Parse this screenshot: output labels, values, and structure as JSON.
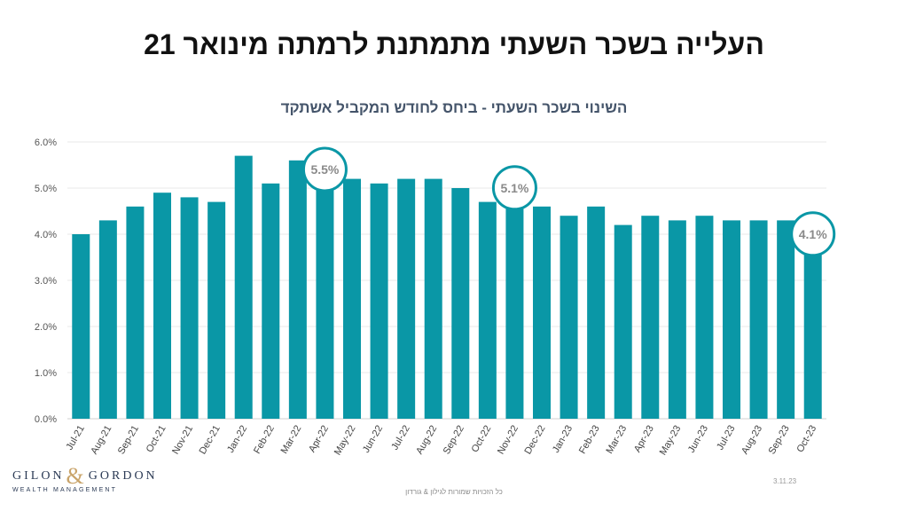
{
  "title": "העלייה בשכר השעתי מתמתנת לרמתה מינואר 21",
  "chart_data": {
    "type": "bar",
    "title": "השינוי בשכר השעתי - ביחס לחודש המקביל אשתקד",
    "categories": [
      "Jul-21",
      "Aug-21",
      "Sep-21",
      "Oct-21",
      "Nov-21",
      "Dec-21",
      "Jan-22",
      "Feb-22",
      "Mar-22",
      "Apr-22",
      "May-22",
      "Jun-22",
      "Jul-22",
      "Aug-22",
      "Sep-22",
      "Oct-22",
      "Nov-22",
      "Dec-22",
      "Jan-23",
      "Feb-23",
      "Mar-23",
      "Apr-23",
      "May-23",
      "Jun-23",
      "Jul-23",
      "Aug-23",
      "Sep-23",
      "Oct-23"
    ],
    "values": [
      4.0,
      4.3,
      4.6,
      4.9,
      4.8,
      4.7,
      5.7,
      5.1,
      5.6,
      5.5,
      5.2,
      5.1,
      5.2,
      5.2,
      5.0,
      4.7,
      5.1,
      4.6,
      4.4,
      4.6,
      4.2,
      4.4,
      4.3,
      4.4,
      4.3,
      4.3,
      4.3,
      4.1
    ],
    "y_ticks": [
      "0.0%",
      "1.0%",
      "2.0%",
      "3.0%",
      "4.0%",
      "5.0%",
      "6.0%"
    ],
    "ylim": [
      0,
      6
    ],
    "bar_color": "#0a97a6",
    "grid": true,
    "callouts": [
      {
        "category": "Apr-22",
        "label": "5.5%"
      },
      {
        "category": "Nov-22",
        "label": "5.1%"
      },
      {
        "category": "Oct-23",
        "label": "4.1%"
      }
    ]
  },
  "logo": {
    "name_left": "GILON",
    "amp": "&",
    "name_right": "GORDON",
    "subtitle": "WEALTH MANAGEMENT"
  },
  "footer_note": "כל הזכויות שמורות לגילון & גורדון",
  "date": "3.11.23"
}
